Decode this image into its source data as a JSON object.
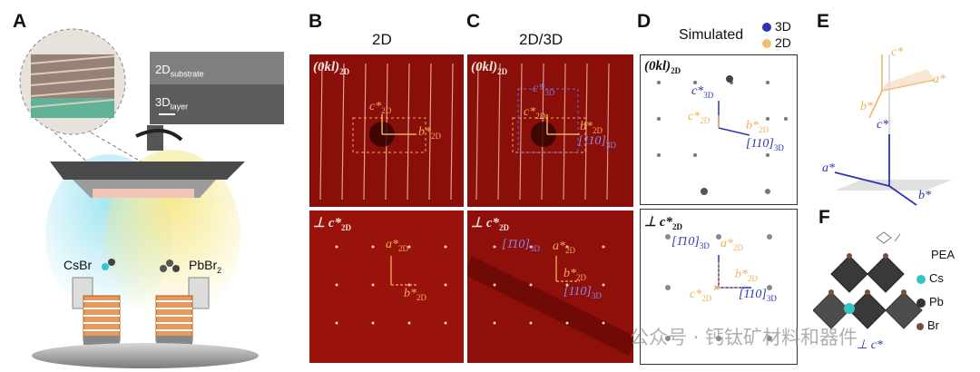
{
  "panels": {
    "a": {
      "letter": "A",
      "sem_substrate_base": "2D",
      "sem_substrate_sub": "substrate",
      "sem_layer_base": "3D",
      "sem_layer_sub": "layer",
      "source_left_base": "CsBr",
      "source_right_base": "PbBr",
      "source_right_sub": "2"
    },
    "b": {
      "letter": "B",
      "title": "2D",
      "top_label": "(0kl)",
      "top_label_sub": "2D",
      "bottom_label": "⊥ c*",
      "bottom_label_sub": "2D",
      "c_star": "c*",
      "a_star": "a*",
      "b_star": "b*",
      "sub2d": "2D"
    },
    "c": {
      "letter": "C",
      "title": "2D/3D",
      "top_label": "(0kl)",
      "top_label_sub": "2D",
      "bottom_label": "⊥ c*",
      "bottom_label_sub": "2D",
      "c_star": "c*",
      "a_star": "a*",
      "b_star": "b*",
      "sub2d": "2D",
      "sub3d": "3D",
      "c3d_label": "c*",
      "dir_110": "[110]",
      "dir_bar110": "[1̄10]"
    },
    "d": {
      "letter": "D",
      "title": "Simulated",
      "legend_3d": "3D",
      "legend_2d": "2D",
      "top_label": "(0kl)",
      "top_label_sub": "2D",
      "bottom_label": "⊥ c*",
      "bottom_label_sub": "2D",
      "c_star": "c*",
      "a_star": "a*",
      "b_star": "b*",
      "sub2d": "2D",
      "sub3d": "3D",
      "dir_110": "[110]",
      "dir_bar110": "[1̄10]"
    },
    "e": {
      "letter": "E",
      "c_star": "c*",
      "a_star": "a*",
      "b_star": "b*"
    },
    "f": {
      "letter": "F",
      "legend_pea": "PEA",
      "legend_cs": "Cs",
      "legend_pb": "Pb",
      "legend_br": "Br",
      "c_star": "⊥ c*"
    }
  },
  "watermark": "公众号 · 钙钛矿材料和器件",
  "colors": {
    "orange": "#f0b05a",
    "blue": "#2a34b8",
    "diffraction_red": "#8a0f0a"
  }
}
